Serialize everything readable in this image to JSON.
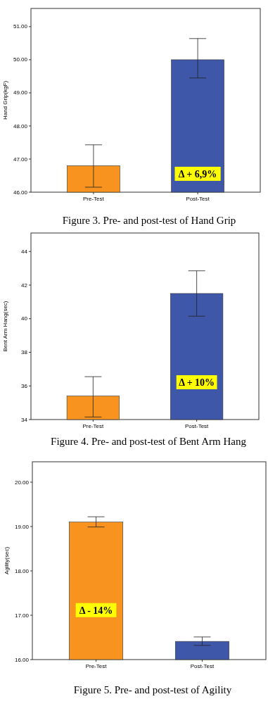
{
  "chart_data": [
    {
      "type": "bar",
      "categories": [
        "Pre-Test",
        "Post-Test"
      ],
      "values": [
        46.8,
        50.0
      ],
      "colors": [
        "#f7931e",
        "#3f57a8"
      ],
      "errors": [
        [
          46.15,
          47.43
        ],
        [
          49.45,
          50.64
        ]
      ],
      "ylabel": "Hand Grip(kgF)",
      "ylim": [
        46,
        51.55
      ],
      "yticks": [
        {
          "value": 46,
          "label": "46.00"
        },
        {
          "value": 47,
          "label": "47.00"
        },
        {
          "value": 48,
          "label": "48.00"
        },
        {
          "value": 49,
          "label": "49.00"
        },
        {
          "value": 50,
          "label": "50.00"
        },
        {
          "value": 51,
          "label": "51.00"
        }
      ],
      "annotations": [
        "Δ + 6,9%",
        "Figure 3. Pre- and post-test of Hand Grip"
      ]
    },
    {
      "type": "bar",
      "categories": [
        "Pre-Test",
        "Post-Test"
      ],
      "values": [
        35.4,
        41.5
      ],
      "colors": [
        "#f7931e",
        "#3f57a8"
      ],
      "errors": [
        [
          34.15,
          36.55
        ],
        [
          40.15,
          42.85
        ]
      ],
      "ylabel": "Bent Arm Hang(sec)",
      "ylim": [
        34,
        45.1
      ],
      "yticks": [
        34,
        36,
        38,
        40,
        42,
        44
      ],
      "annotations": [
        "Δ + 10%",
        "Figure 4. Pre- and post-test of Bent Arm Hang"
      ]
    },
    {
      "type": "bar",
      "categories": [
        "Pre-Test",
        "Post-Test"
      ],
      "values": [
        19.1,
        16.41
      ],
      "colors": [
        "#f7931e",
        "#3f57a8"
      ],
      "errors": [
        [
          18.99,
          19.22
        ],
        [
          16.32,
          16.51
        ]
      ],
      "ylabel": "Agility(sec)",
      "ylim": [
        16,
        20.46
      ],
      "yticks": [
        {
          "value": 16,
          "label": "16.00"
        },
        {
          "value": 17,
          "label": "17.00"
        },
        {
          "value": 18,
          "label": "18.00"
        },
        {
          "value": 19,
          "label": "19.00"
        },
        {
          "value": 20,
          "label": "20.00"
        }
      ],
      "annotations": [
        "Δ - 14%",
        "Figure 5. Pre- and post-test of Agility"
      ]
    }
  ]
}
